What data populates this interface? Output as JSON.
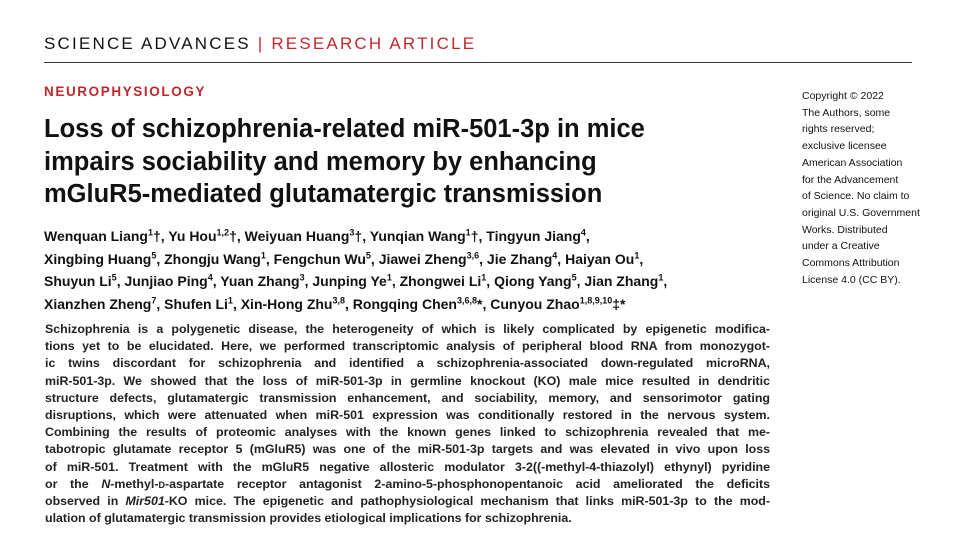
{
  "header": {
    "journal": "SCIENCE ADVANCES",
    "divider": "|",
    "article_type": "RESEARCH ARTICLE"
  },
  "section": "NEUROPHYSIOLOGY",
  "title_lines": [
    "Loss of schizophrenia-related miR-501-3p in mice",
    "impairs sociability and memory by enhancing",
    "mGluR5-mediated glutamatergic transmission"
  ],
  "author_lines": [
    [
      {
        "name": "Wenquan Liang",
        "sup": "1",
        "mark": "†",
        "sep": ","
      },
      {
        "name": "Yu Hou",
        "sup": "1,2",
        "mark": "†",
        "sep": ","
      },
      {
        "name": "Weiyuan Huang",
        "sup": "3",
        "mark": "†",
        "sep": ","
      },
      {
        "name": "Yunqian Wang",
        "sup": "1",
        "mark": "†",
        "sep": ","
      },
      {
        "name": "Tingyun Jiang",
        "sup": "4",
        "sep": ","
      }
    ],
    [
      {
        "name": "Xingbing Huang",
        "sup": "5",
        "sep": ","
      },
      {
        "name": "Zhongju Wang",
        "sup": "1",
        "sep": ","
      },
      {
        "name": "Fengchun Wu",
        "sup": "5",
        "sep": ","
      },
      {
        "name": "Jiawei Zheng",
        "sup": "3,6",
        "sep": ","
      },
      {
        "name": "Jie Zhang",
        "sup": "4",
        "sep": ","
      },
      {
        "name": "Haiyan Ou",
        "sup": "1",
        "sep": ","
      }
    ],
    [
      {
        "name": "Shuyun Li",
        "sup": "5",
        "sep": ","
      },
      {
        "name": "Junjiao Ping",
        "sup": "4",
        "sep": ","
      },
      {
        "name": "Yuan Zhang",
        "sup": "3",
        "sep": ","
      },
      {
        "name": "Junping Ye",
        "sup": "1",
        "sep": ","
      },
      {
        "name": "Zhongwei Li",
        "sup": "1",
        "sep": ","
      },
      {
        "name": "Qiong Yang",
        "sup": "5",
        "sep": ","
      },
      {
        "name": "Jian Zhang",
        "sup": "1",
        "sep": ","
      }
    ],
    [
      {
        "name": "Xianzhen Zheng",
        "sup": "7",
        "sep": ","
      },
      {
        "name": "Shufen Li",
        "sup": "1",
        "sep": ","
      },
      {
        "name": "Xin-Hong Zhu",
        "sup": "3,8",
        "sep": ","
      },
      {
        "name": "Rongqing Chen",
        "sup": "3,6,8",
        "mark": "*",
        "sep": ","
      },
      {
        "name": "Cunyou Zhao",
        "sup": "1,8,9,10",
        "mark": "‡*"
      }
    ]
  ],
  "copyright_lines": [
    "Copyright © 2022",
    "The Authors, some",
    "rights reserved;",
    "exclusive licensee",
    "American Association",
    "for the Advancement",
    "of Science. No claim to",
    "original U.S. Government",
    "Works. Distributed",
    "under a Creative",
    "Commons Attribution",
    "License 4.0 (CC BY)."
  ],
  "abstract_lines": [
    "Schizophrenia is a polygenetic disease, the heterogeneity of which is likely complicated by epigenetic modifica-",
    "tions yet to be elucidated. Here, we performed transcriptomic analysis of peripheral blood RNA from monozygot-",
    "ic twins discordant for schizophrenia and identified a schizophrenia-associated down-regulated microRNA,",
    "miR-501-3p. We showed that the loss of miR-501-3p in germline knockout (KO) male mice resulted in dendritic",
    "structure defects, glutamatergic transmission enhancement, and sociability, memory, and sensorimotor gating",
    "disruptions, which were attenuated when miR-501 expression was conditionally restored in the nervous system.",
    "Combining the results of proteomic analyses with the known genes linked to schizophrenia revealed that me-",
    "tabotropic glutamate receptor 5 (mGluR5) was one of the miR-501-3p targets and was elevated in vivo upon loss",
    "of miR-501. Treatment with the mGluR5 negative allosteric modulator 3-2((-methyl-4-thiazolyl) ethynyl) pyridine",
    [
      "or the ",
      "N",
      "-methyl-",
      "d",
      "-aspartate receptor antagonist 2-amino-5-phosphonopentanoic acid ameliorated the deficits"
    ],
    [
      "observed in ",
      "Mir501",
      "-KO mice. The epigenetic and pathophysiological mechanism that links miR-501-3p to the mod-"
    ],
    "ulation of glutamatergic transmission provides etiological implications for schizophrenia."
  ]
}
